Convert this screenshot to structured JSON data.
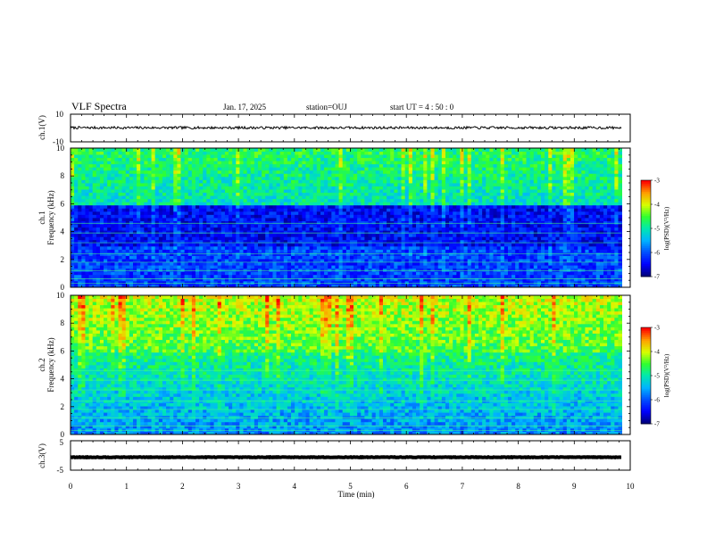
{
  "header": {
    "title": "VLF Spectra",
    "date": "Jan. 17, 2025",
    "station": "station=OUJ",
    "start_ut": "start  UT =   4 : 50 : 0"
  },
  "chart_data": [
    {
      "type": "line",
      "name": "ch1-waveform",
      "ylabel": "ch.1(V)",
      "y_ticks": [
        "10",
        "-10"
      ],
      "ylim": [
        -10,
        10
      ],
      "x_range_min": [
        0,
        9.85
      ],
      "level": 0.2,
      "amplitude": 0.9
    },
    {
      "type": "heatmap",
      "name": "ch1-spectrogram",
      "ylabel_lines": [
        "ch.1",
        "Frequency  (kHz)"
      ],
      "y_ticks": [
        "0",
        "2",
        "4",
        "6",
        "8",
        "10"
      ],
      "ylim": [
        0,
        10
      ],
      "x_range_min": [
        0,
        9.85
      ],
      "colorbar": {
        "label": "log(PSD)(V²/Hz)",
        "ticks": [
          "-3",
          "-4",
          "-5",
          "-6",
          "-7"
        ],
        "range": [
          -7,
          -3
        ]
      }
    },
    {
      "type": "heatmap",
      "name": "ch2-spectrogram",
      "ylabel_lines": [
        "ch.2",
        "Frequency  (kHz)"
      ],
      "y_ticks": [
        "0",
        "2",
        "4",
        "6",
        "8",
        "10"
      ],
      "ylim": [
        0,
        10
      ],
      "x_range_min": [
        0,
        9.85
      ],
      "colorbar": {
        "label": "log(PSD)(V²/Hz)",
        "ticks": [
          "-3",
          "-4",
          "-5",
          "-6",
          "-7"
        ],
        "range": [
          -7,
          -3
        ]
      }
    },
    {
      "type": "line",
      "name": "ch3-waveform",
      "ylabel": "ch.3(V)",
      "y_ticks": [
        "5",
        "-5"
      ],
      "ylim": [
        -5,
        5
      ],
      "x_range_min": [
        0,
        9.85
      ],
      "level": -0.6,
      "amplitude": 0.1
    }
  ],
  "x_axis": {
    "label": "Time  (min)",
    "ticks": [
      "0",
      "1",
      "2",
      "3",
      "4",
      "5",
      "6",
      "7",
      "8",
      "9",
      "10"
    ],
    "range": [
      0,
      10
    ]
  },
  "colors": {
    "scale": [
      "#00007a",
      "#0000ff",
      "#0050ff",
      "#00b4ff",
      "#00e8b0",
      "#30ff30",
      "#d8ff00",
      "#ffa000",
      "#ff0000",
      "#ffffff"
    ]
  }
}
